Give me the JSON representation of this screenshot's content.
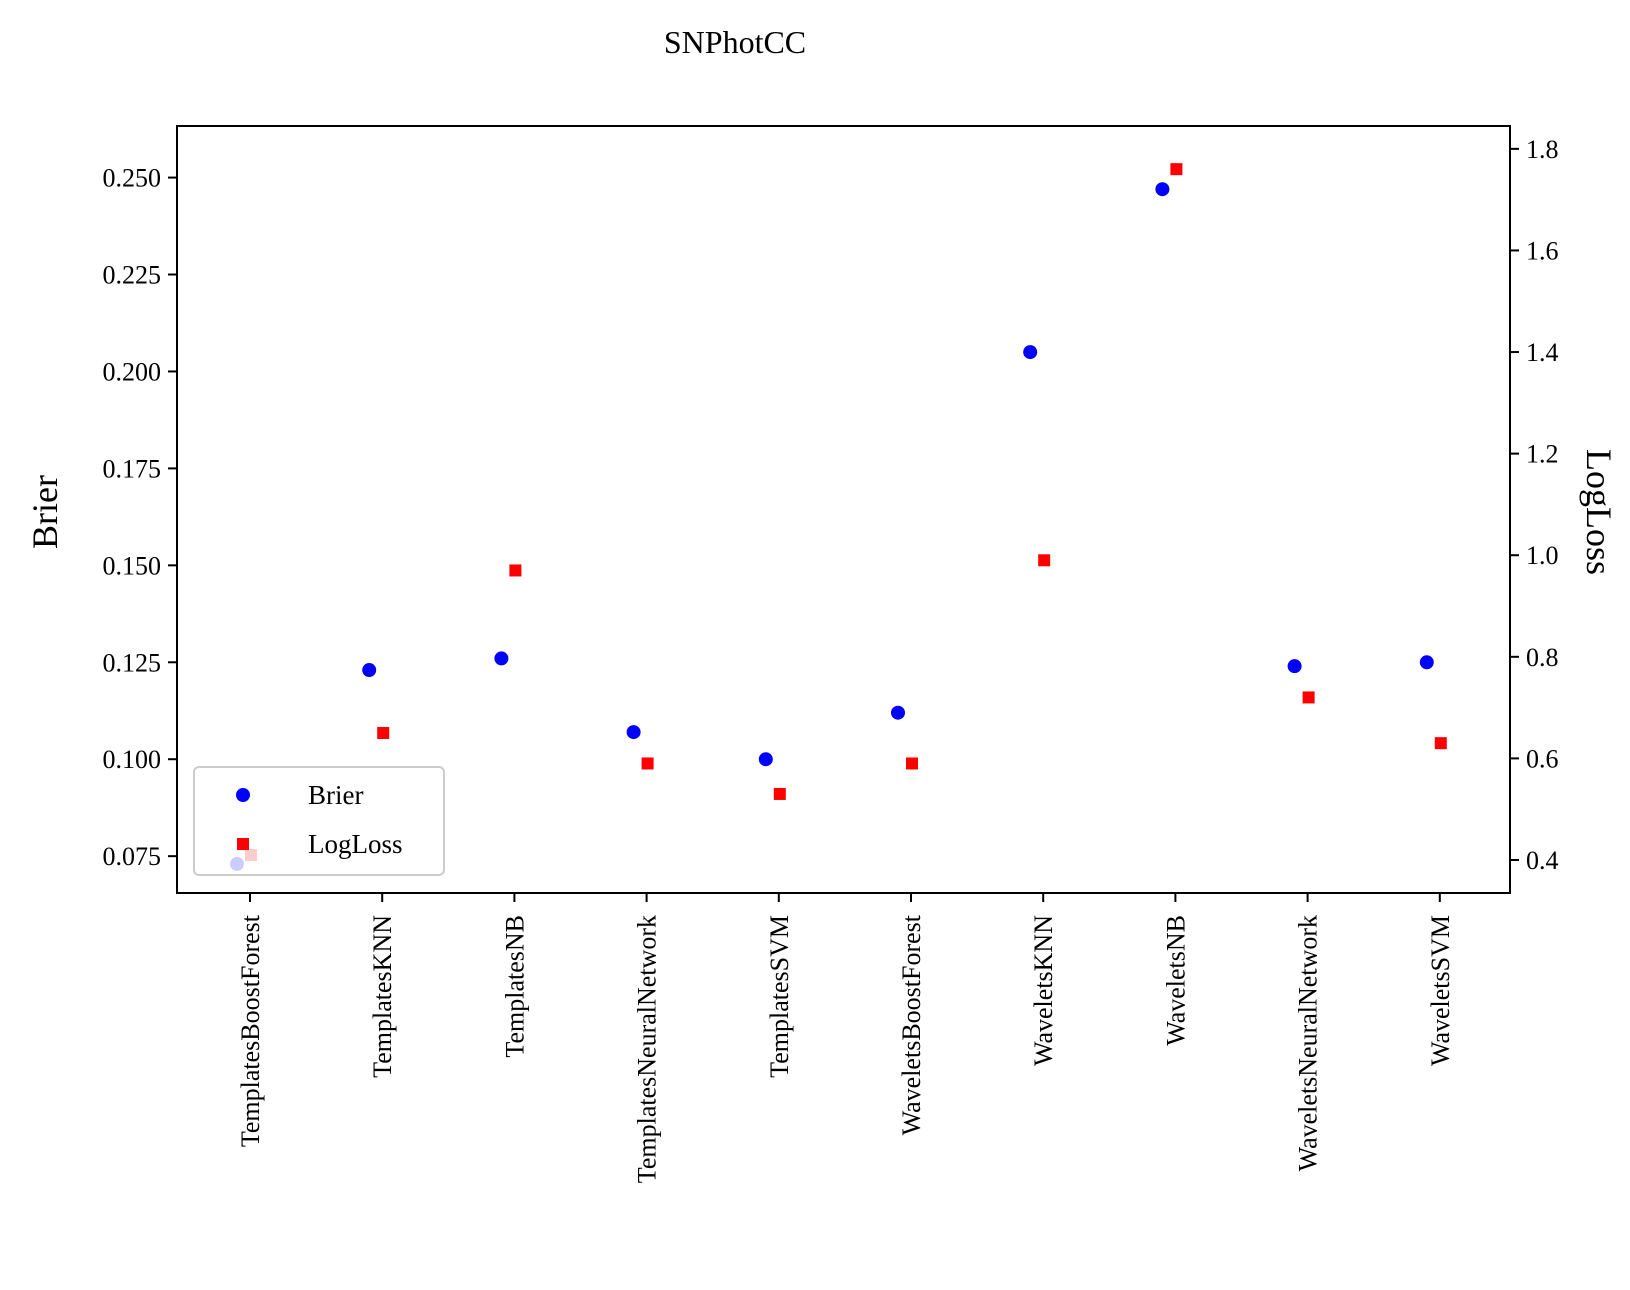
{
  "chart_data": {
    "type": "scatter",
    "title": "SNPhotCC",
    "xlabel": "",
    "ylabel": "Brier",
    "y2label": "LogLoss",
    "categories": [
      "TemplatesBoostForest",
      "TemplatesKNN",
      "TemplatesNB",
      "TemplatesNeuralNetwork",
      "TemplatesSVM",
      "WaveletsBoostForest",
      "WaveletsKNN",
      "WaveletsNB",
      "WaveletsNeuralNetwork",
      "WaveletsSVM"
    ],
    "series": [
      {
        "name": "Brier",
        "axis": "left",
        "marker": "circle",
        "color": "#0000ff",
        "values": [
          0.073,
          0.123,
          0.126,
          0.107,
          0.1,
          0.112,
          0.205,
          0.247,
          0.124,
          0.125
        ]
      },
      {
        "name": "LogLoss",
        "axis": "right",
        "marker": "square",
        "color": "#ff0000",
        "values": [
          0.41,
          0.65,
          0.97,
          0.59,
          0.53,
          0.59,
          0.99,
          1.76,
          0.72,
          0.63
        ]
      }
    ],
    "ylim": [
      0.0655,
      0.2633
    ],
    "y2lim": [
      0.335,
      1.845
    ],
    "yticks": [
      "0.075",
      "0.100",
      "0.125",
      "0.150",
      "0.175",
      "0.200",
      "0.225",
      "0.250"
    ],
    "y2ticks": [
      "0.4",
      "0.6",
      "0.8",
      "1.0",
      "1.2",
      "1.4",
      "1.6",
      "1.8"
    ],
    "legend": {
      "position": "lower-left",
      "entries": [
        "Brier",
        "LogLoss"
      ]
    },
    "grid": false
  }
}
